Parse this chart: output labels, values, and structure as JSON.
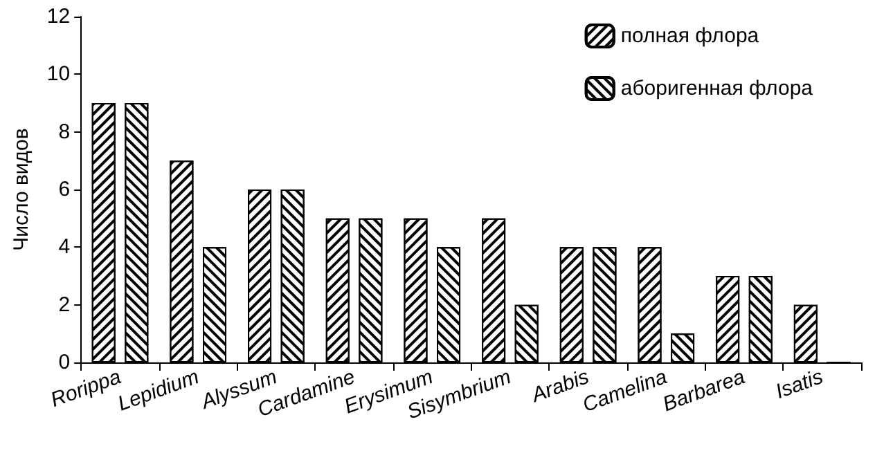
{
  "chart_data": {
    "type": "bar",
    "ylabel": "Число видов",
    "categories": [
      "Rorippa",
      "Lepidium",
      "Alyssum",
      "Cardamine",
      "Erysimum",
      "Sisymbrium",
      "Arabis",
      "Camelina",
      "Barbarea",
      "Isatis"
    ],
    "series": [
      {
        "name": "полная флора",
        "color": "#000000",
        "values": [
          9,
          7,
          6,
          5,
          5,
          5,
          4,
          4,
          3,
          2
        ]
      },
      {
        "name": "аборигенная флора",
        "color": "#000000",
        "values": [
          9,
          4,
          6,
          5,
          4,
          2,
          4,
          1,
          3,
          0
        ]
      }
    ],
    "ylim": [
      0,
      12
    ],
    "yticks": [
      0,
      2,
      4,
      6,
      8,
      10,
      12
    ],
    "grid": false,
    "legend": "top right"
  }
}
